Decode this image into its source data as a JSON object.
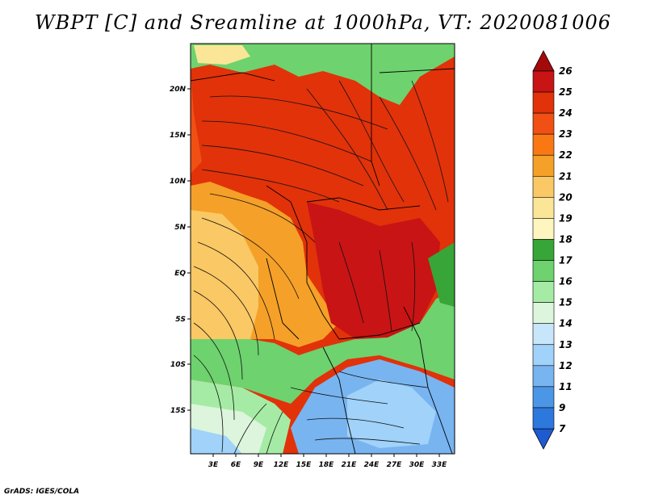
{
  "title": "WBPT [C] and Sreamline at 1000hPa, VT: 2020081006",
  "credit": "GrADS: IGES/COLA",
  "map": {
    "lat_labels": [
      "20N",
      "15N",
      "10N",
      "5N",
      "EQ",
      "5S",
      "10S",
      "15S"
    ],
    "lon_labels": [
      "3E",
      "6E",
      "9E",
      "12E",
      "15E",
      "18E",
      "21E",
      "24E",
      "27E",
      "30E",
      "33E"
    ]
  },
  "colorbar": {
    "labels": [
      "26",
      "25",
      "24",
      "23",
      "22",
      "21",
      "20",
      "19",
      "18",
      "17",
      "16",
      "15",
      "14",
      "13",
      "12",
      "11",
      "9",
      "7"
    ],
    "colors": [
      "#a50a0a",
      "#c81414",
      "#e1320a",
      "#f05014",
      "#fa7814",
      "#f5a028",
      "#fac864",
      "#fae696",
      "#fff5be",
      "#37a537",
      "#6ed26e",
      "#a5eba5",
      "#dcf5dc",
      "#c8e6fa",
      "#a0d2fa",
      "#78b4f0",
      "#4b96e6",
      "#2d78dc",
      "#1e5ad2"
    ]
  },
  "colors": {
    "red": "#e1320a",
    "orange": "#f5a028",
    "green": "#6ed26e",
    "blue": "#78b4f0"
  }
}
